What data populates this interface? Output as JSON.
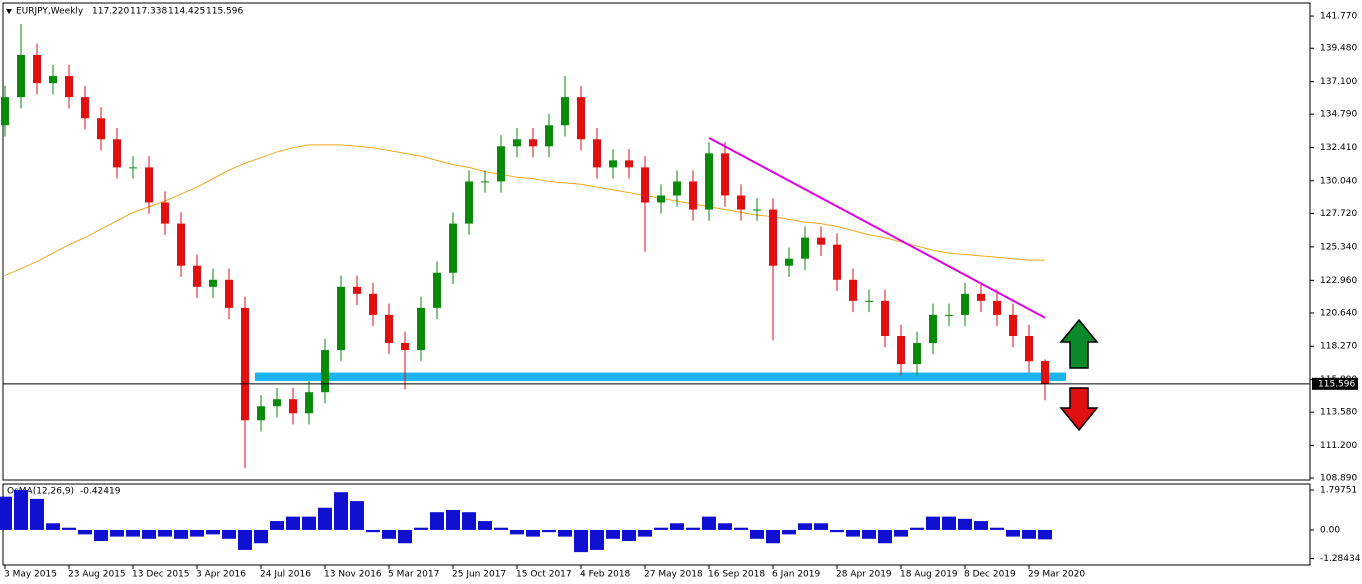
{
  "chart_data": [
    {
      "type": "candlestick",
      "title": "EURJPY,Weekly",
      "header_labels": [
        "117.220",
        "117.338",
        "114.425",
        "115.596"
      ],
      "categories": [
        "3 May 2015",
        null,
        null,
        null,
        "23 Aug 2015",
        null,
        null,
        null,
        "13 Dec 2015",
        null,
        null,
        null,
        "3 Apr 2016",
        null,
        null,
        null,
        "24 Jul 2016",
        null,
        null,
        null,
        "13 Nov 2016",
        null,
        null,
        null,
        "5 Mar 2017",
        null,
        null,
        null,
        "25 Jun 2017",
        null,
        null,
        null,
        "15 Oct 2017",
        null,
        null,
        null,
        "4 Feb 2018",
        null,
        null,
        null,
        "27 May 2018",
        null,
        null,
        null,
        "16 Sep 2018",
        null,
        null,
        null,
        "6 Jan 2019",
        null,
        null,
        null,
        "28 Apr 2019",
        null,
        null,
        null,
        "18 Aug 2019",
        null,
        null,
        null,
        "8 Dec 2019",
        null,
        null,
        null,
        "29 Mar 2020",
        null
      ],
      "open": [
        134,
        136,
        139,
        137,
        137.5,
        136,
        134.5,
        133,
        131,
        131,
        128.5,
        127,
        124,
        122.5,
        123,
        121,
        113,
        114,
        114.5,
        113.5,
        115,
        118,
        122.5,
        122,
        120.5,
        118.5,
        118,
        121,
        123.5,
        127,
        130,
        130,
        132.5,
        133,
        132.5,
        134,
        136,
        133,
        131,
        131.5,
        131,
        128.5,
        129,
        130,
        128,
        132,
        129,
        128,
        128,
        124,
        124.5,
        126,
        125.5,
        123,
        121.5,
        121.5,
        119,
        117,
        118.5,
        120.5,
        120.5,
        122,
        121.5,
        120.5,
        119,
        117.22
      ],
      "high": [
        136.8,
        141.2,
        139.8,
        138.3,
        138.3,
        136.8,
        135.3,
        133.8,
        131.8,
        131.8,
        129.3,
        127.8,
        124.8,
        123.8,
        123.8,
        121.8,
        114.8,
        115.3,
        115.3,
        115.8,
        118.8,
        123.3,
        123.3,
        122.8,
        121.3,
        119.3,
        121.8,
        124.3,
        127.8,
        130.8,
        130.8,
        133.3,
        133.8,
        133.8,
        134.8,
        137.5,
        136.8,
        133.8,
        132.3,
        132.3,
        131.8,
        129.8,
        130.8,
        130.8,
        132.8,
        132.8,
        129.8,
        128.8,
        128.8,
        125.3,
        126.8,
        126.8,
        126.3,
        123.8,
        122.3,
        122.3,
        119.8,
        119.3,
        121.3,
        121.3,
        122.8,
        122.8,
        122.3,
        121.3,
        119.8,
        117.338
      ],
      "low": [
        133.2,
        135.2,
        136.2,
        136.2,
        135.2,
        133.7,
        132.2,
        130.2,
        130.2,
        127.7,
        126.2,
        123.2,
        121.7,
        121.7,
        120.2,
        109.6,
        112.2,
        113.2,
        112.7,
        112.7,
        114.2,
        117.2,
        121.2,
        119.7,
        117.7,
        115.2,
        117.2,
        120.2,
        122.7,
        126.2,
        129.2,
        129.2,
        131.7,
        131.7,
        131.7,
        133.2,
        132.2,
        130.2,
        130.2,
        130.2,
        125,
        127.7,
        128.2,
        127.2,
        127.2,
        128.2,
        127.2,
        127.2,
        118.7,
        123.2,
        123.7,
        124.7,
        122.2,
        120.7,
        120.7,
        118.2,
        116.2,
        116.2,
        117.7,
        119.7,
        119.7,
        120.7,
        119.7,
        118.2,
        116.4,
        114.425
      ],
      "close": [
        136,
        139,
        137,
        137.5,
        136,
        134.5,
        133,
        131,
        131,
        128.5,
        127,
        124,
        122.5,
        123,
        121,
        113,
        114,
        114.5,
        113.5,
        115,
        118,
        122.5,
        122,
        120.5,
        118.5,
        118,
        121,
        123.5,
        127,
        130,
        130,
        132.5,
        133,
        132.5,
        134,
        136,
        133,
        131,
        131.5,
        131,
        128.5,
        129,
        130,
        128,
        132,
        129,
        128,
        128,
        124,
        124.5,
        126,
        125.5,
        123,
        121.5,
        121.5,
        119,
        117,
        118.5,
        120.5,
        120.5,
        122,
        121.5,
        120.5,
        119,
        117.2,
        115.596
      ],
      "ma": {
        "color": "#f2a71b",
        "values": [
          123.3,
          123.8,
          124.3,
          124.9,
          125.5,
          126.0,
          126.6,
          127.2,
          127.8,
          128.2,
          128.6,
          129.1,
          129.6,
          130.2,
          130.8,
          131.3,
          131.7,
          132.1,
          132.4,
          132.6,
          132.6,
          132.6,
          132.5,
          132.4,
          132.2,
          132.0,
          131.8,
          131.5,
          131.2,
          131.0,
          130.7,
          130.5,
          130.3,
          130.2,
          130.0,
          129.9,
          129.8,
          129.6,
          129.4,
          129.2,
          129.0,
          128.8,
          128.6,
          128.4,
          128.2,
          128.0,
          127.8,
          127.6,
          127.5,
          127.3,
          127.1,
          127.0,
          126.8,
          126.5,
          126.2,
          126.0,
          125.7,
          125.4,
          125.1,
          124.9,
          124.8,
          124.7,
          124.6,
          124.5,
          124.4,
          124.4
        ]
      },
      "trendline": {
        "color": "#e000e0",
        "x": [
          44,
          65
        ],
        "values": [
          133.1,
          120.3
        ]
      },
      "zone": {
        "color": "#1eb4f0",
        "values": [
          115.8,
          116.4
        ]
      },
      "current_price": {
        "value": 115.596,
        "label": "115.596"
      },
      "up_color": "#0a8a0a",
      "down_color": "#e01010",
      "ylim": [
        108.75,
        142.7
      ],
      "yticks": [
        {
          "value": 141.77,
          "label": "141.770"
        },
        {
          "value": 139.48,
          "label": "139.480"
        },
        {
          "value": 137.1,
          "label": "137.100"
        },
        {
          "value": 134.79,
          "label": "134.790"
        },
        {
          "value": 132.41,
          "label": "132.410"
        },
        {
          "value": 130.04,
          "label": "130.040"
        },
        {
          "value": 127.72,
          "label": "127.720"
        },
        {
          "value": 125.34,
          "label": "125.340"
        },
        {
          "value": 122.96,
          "label": "122.960"
        },
        {
          "value": 120.64,
          "label": "120.640"
        },
        {
          "value": 118.27,
          "label": "118.270"
        },
        {
          "value": 115.89,
          "label": "115.890"
        },
        {
          "value": 113.58,
          "label": "113.580"
        },
        {
          "value": 111.2,
          "label": "111.200"
        },
        {
          "value": 108.89,
          "label": "108.890"
        }
      ]
    },
    {
      "type": "bar",
      "title": "OsMA(12,26,9)",
      "value_label": "-0.42419",
      "color": "#1010d0",
      "values": [
        1.5,
        1.8,
        1.4,
        0.3,
        0.1,
        -0.2,
        -0.5,
        -0.3,
        -0.3,
        -0.4,
        -0.3,
        -0.4,
        -0.3,
        -0.2,
        -0.4,
        -0.9,
        -0.6,
        0.4,
        0.6,
        0.6,
        1.0,
        1.7,
        1.3,
        -0.1,
        -0.4,
        -0.6,
        0.1,
        0.8,
        0.9,
        0.8,
        0.4,
        0.1,
        -0.2,
        -0.3,
        -0.1,
        -0.3,
        -1.0,
        -0.9,
        -0.4,
        -0.5,
        -0.3,
        0.1,
        0.3,
        0.1,
        0.6,
        0.3,
        0.1,
        -0.4,
        -0.6,
        -0.2,
        0.3,
        0.3,
        -0.1,
        -0.3,
        -0.4,
        -0.6,
        -0.3,
        0.1,
        0.6,
        0.6,
        0.5,
        0.4,
        0.1,
        -0.3,
        -0.4,
        -0.42419
      ],
      "ylim": [
        -1.58,
        2.07
      ],
      "yticks": [
        1.79751,
        {
          "value": 0,
          "label": "0.00"
        },
        -1.28434
      ]
    }
  ]
}
